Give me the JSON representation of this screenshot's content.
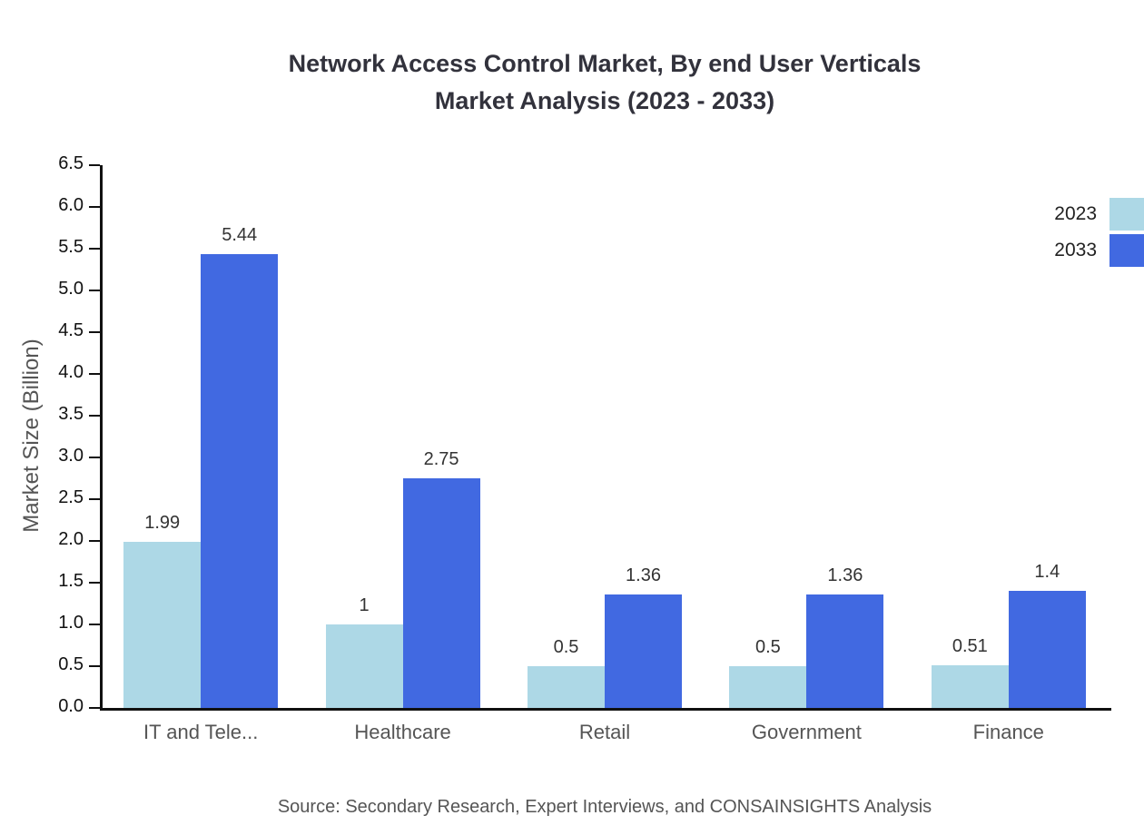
{
  "chart_data": {
    "type": "bar",
    "title_line1": "Network Access Control Market, By end User Verticals",
    "title_line2": "Market Analysis (2023 - 2033)",
    "ylabel": "Market Size (Billion)",
    "categories": [
      "IT and Tele...",
      "Healthcare",
      "Retail",
      "Government",
      "Finance"
    ],
    "series": [
      {
        "name": "2023",
        "color": "#add8e6",
        "values": [
          1.99,
          1,
          0.5,
          0.5,
          0.51
        ],
        "labels": [
          "1.99",
          "1",
          "0.5",
          "0.5",
          "0.51"
        ]
      },
      {
        "name": "2033",
        "color": "#4169e1",
        "values": [
          5.44,
          2.75,
          1.36,
          1.36,
          1.4
        ],
        "labels": [
          "5.44",
          "2.75",
          "1.36",
          "1.36",
          "1.4"
        ]
      }
    ],
    "ylim": [
      0,
      6.5
    ],
    "ytick_step": 0.5,
    "grid": false,
    "legend_position": "top-right",
    "source": "Source: Secondary Research, Expert Interviews, and CONSAINSIGHTS Analysis"
  }
}
